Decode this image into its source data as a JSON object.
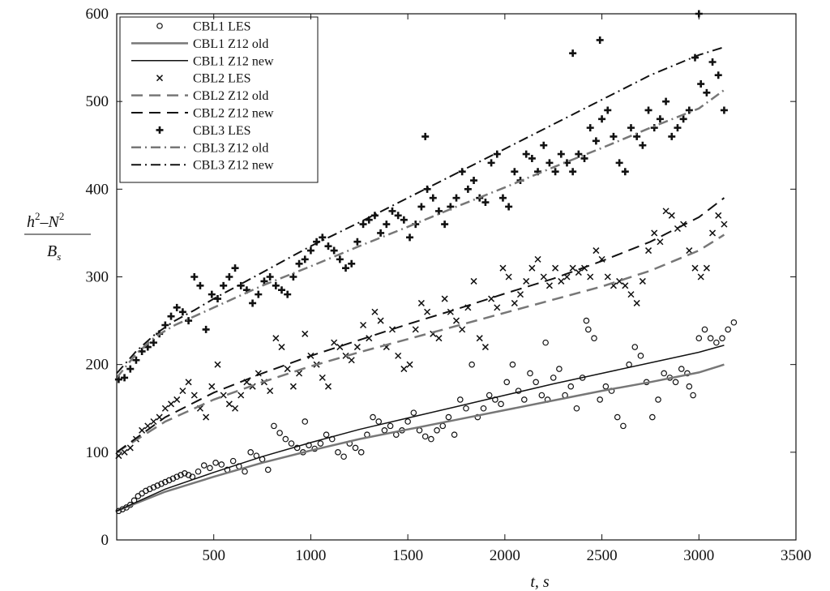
{
  "chart_data": {
    "type": "line",
    "title": "",
    "xlabel": "t, s",
    "ylabel": {
      "numerator_h": "h",
      "numerator_minus": "–",
      "numerator_n": "N",
      "exponent": "2",
      "denominator": "B",
      "denominator_sub": "s"
    },
    "xlim": [
      0,
      3500
    ],
    "ylim": [
      0,
      600
    ],
    "xticks": [
      "500",
      "1000",
      "1500",
      "2000",
      "2500",
      "3000",
      "3500"
    ],
    "xtick_values": [
      500,
      1000,
      1500,
      2000,
      2500,
      3000,
      3500
    ],
    "yticks": [
      "0",
      "100",
      "200",
      "300",
      "400",
      "500",
      "600"
    ],
    "ytick_values": [
      0,
      100,
      200,
      300,
      400,
      500,
      600
    ],
    "grid": false,
    "legend_position": "top-left",
    "colors": {
      "black": "#111111",
      "grey": "#777777"
    },
    "series": [
      {
        "name": "CBL1 LES",
        "kind": "scatter",
        "marker": "circle",
        "color": "#111111",
        "x": [
          10,
          30,
          50,
          70,
          90,
          110,
          130,
          150,
          170,
          190,
          210,
          230,
          250,
          270,
          290,
          310,
          330,
          350,
          370,
          390,
          420,
          450,
          480,
          510,
          540,
          570,
          600,
          630,
          660,
          690,
          720,
          750,
          780,
          810,
          840,
          870,
          900,
          930,
          960,
          990,
          1020,
          1050,
          1080,
          1110,
          1140,
          1170,
          1200,
          1230,
          1260,
          1290,
          1320,
          1350,
          1380,
          1410,
          1440,
          1470,
          1500,
          1530,
          1560,
          1590,
          1620,
          1650,
          1680,
          1710,
          1740,
          1770,
          1800,
          1830,
          1860,
          1890,
          1920,
          1950,
          1980,
          2010,
          2040,
          2070,
          2100,
          2130,
          2160,
          2190,
          2220,
          2250,
          2280,
          2310,
          2340,
          2370,
          2400,
          2430,
          2460,
          2490,
          2520,
          2550,
          2580,
          2610,
          2640,
          2670,
          2700,
          2730,
          2760,
          2790,
          2820,
          2850,
          2880,
          2910,
          2940,
          2970,
          3000,
          3030,
          3060,
          3090,
          3120,
          3150,
          3180,
          970,
          2210,
          2420,
          2950
        ],
        "y": [
          33,
          35,
          37,
          40,
          45,
          50,
          53,
          56,
          58,
          60,
          62,
          64,
          66,
          68,
          70,
          72,
          74,
          76,
          74,
          72,
          78,
          85,
          82,
          88,
          86,
          80,
          90,
          84,
          78,
          100,
          96,
          92,
          80,
          130,
          122,
          115,
          110,
          105,
          100,
          108,
          104,
          110,
          120,
          115,
          100,
          95,
          110,
          105,
          100,
          120,
          140,
          135,
          125,
          130,
          120,
          125,
          135,
          145,
          125,
          118,
          115,
          125,
          130,
          140,
          120,
          160,
          150,
          200,
          140,
          150,
          165,
          160,
          155,
          180,
          200,
          170,
          160,
          190,
          180,
          165,
          160,
          185,
          195,
          165,
          175,
          150,
          185,
          240,
          230,
          160,
          175,
          170,
          140,
          130,
          200,
          220,
          210,
          180,
          140,
          160,
          190,
          185,
          180,
          195,
          190,
          165,
          230,
          240,
          230,
          225,
          230,
          240,
          248,
          135,
          225,
          250,
          175
        ]
      },
      {
        "name": "CBL1 Z12 old",
        "kind": "line",
        "dash": "solid",
        "color": "#777777",
        "width": 2.5,
        "x": [
          0,
          250,
          500,
          750,
          1000,
          1250,
          1500,
          1750,
          2000,
          2250,
          2500,
          2750,
          3000,
          3130
        ],
        "y": [
          33,
          55,
          72,
          88,
          102,
          115,
          126,
          137,
          148,
          159,
          170,
          180,
          191,
          200
        ]
      },
      {
        "name": "CBL1 Z12 new",
        "kind": "line",
        "dash": "solid",
        "color": "#111111",
        "width": 1.5,
        "x": [
          0,
          250,
          500,
          750,
          1000,
          1250,
          1500,
          1750,
          2000,
          2250,
          2500,
          2750,
          3000,
          3130
        ],
        "y": [
          33,
          58,
          77,
          95,
          111,
          126,
          139,
          152,
          165,
          178,
          190,
          202,
          214,
          222
        ]
      },
      {
        "name": "CBL2 LES",
        "kind": "scatter",
        "marker": "x",
        "color": "#111111",
        "x": [
          10,
          40,
          70,
          100,
          130,
          160,
          190,
          220,
          250,
          280,
          310,
          340,
          370,
          400,
          430,
          460,
          490,
          520,
          550,
          580,
          610,
          640,
          670,
          700,
          730,
          760,
          790,
          820,
          850,
          880,
          910,
          940,
          970,
          1000,
          1030,
          1060,
          1090,
          1120,
          1150,
          1180,
          1210,
          1240,
          1270,
          1300,
          1330,
          1360,
          1390,
          1420,
          1450,
          1480,
          1510,
          1540,
          1570,
          1600,
          1630,
          1660,
          1690,
          1720,
          1750,
          1780,
          1810,
          1840,
          1870,
          1900,
          1930,
          1960,
          1990,
          2020,
          2050,
          2080,
          2110,
          2140,
          2170,
          2200,
          2230,
          2260,
          2290,
          2320,
          2350,
          2380,
          2410,
          2440,
          2470,
          2500,
          2530,
          2560,
          2590,
          2620,
          2650,
          2680,
          2710,
          2740,
          2770,
          2800,
          2830,
          2860,
          2890,
          2920,
          2950,
          2980,
          3010,
          3040,
          3070,
          3100,
          3130
        ],
        "y": [
          96,
          100,
          105,
          115,
          125,
          130,
          135,
          140,
          150,
          155,
          160,
          170,
          180,
          165,
          150,
          140,
          175,
          200,
          165,
          155,
          150,
          165,
          180,
          175,
          190,
          180,
          170,
          230,
          220,
          195,
          175,
          190,
          235,
          210,
          200,
          185,
          175,
          225,
          220,
          210,
          205,
          220,
          245,
          230,
          260,
          250,
          220,
          240,
          210,
          195,
          200,
          240,
          270,
          260,
          235,
          230,
          275,
          260,
          250,
          240,
          265,
          295,
          230,
          220,
          275,
          265,
          310,
          300,
          270,
          280,
          295,
          310,
          320,
          300,
          290,
          310,
          295,
          300,
          310,
          305,
          310,
          300,
          330,
          320,
          300,
          290,
          295,
          290,
          280,
          270,
          295,
          330,
          350,
          340,
          375,
          370,
          355,
          360,
          330,
          310,
          300,
          310,
          350,
          370,
          360
        ]
      },
      {
        "name": "CBL2 Z12 old",
        "kind": "line",
        "dash": "dashed",
        "color": "#777777",
        "width": 2.5,
        "x": [
          0,
          250,
          500,
          750,
          1000,
          1250,
          1500,
          1750,
          2000,
          2250,
          2500,
          2750,
          3000,
          3130
        ],
        "y": [
          100,
          135,
          160,
          180,
          198,
          214,
          229,
          244,
          259,
          274,
          289,
          307,
          330,
          348
        ]
      },
      {
        "name": "CBL2 Z12 new",
        "kind": "line",
        "dash": "dashed",
        "color": "#111111",
        "width": 2,
        "x": [
          0,
          250,
          500,
          750,
          1000,
          1250,
          1500,
          1750,
          2000,
          2250,
          2500,
          2750,
          3000,
          3130
        ],
        "y": [
          100,
          140,
          168,
          190,
          210,
          228,
          246,
          263,
          281,
          298,
          318,
          340,
          368,
          390
        ]
      },
      {
        "name": "CBL3 LES",
        "kind": "scatter",
        "marker": "plus",
        "color": "#111111",
        "x": [
          10,
          40,
          70,
          100,
          130,
          160,
          190,
          220,
          250,
          280,
          310,
          340,
          370,
          400,
          430,
          460,
          490,
          520,
          550,
          580,
          610,
          640,
          670,
          700,
          730,
          760,
          790,
          820,
          850,
          880,
          910,
          940,
          970,
          1000,
          1030,
          1060,
          1090,
          1120,
          1150,
          1180,
          1210,
          1240,
          1270,
          1300,
          1330,
          1360,
          1390,
          1420,
          1450,
          1480,
          1510,
          1540,
          1570,
          1600,
          1630,
          1660,
          1690,
          1720,
          1750,
          1780,
          1810,
          1840,
          1870,
          1900,
          1930,
          1960,
          1990,
          2020,
          2050,
          2080,
          2110,
          2140,
          2170,
          2200,
          2230,
          2260,
          2290,
          2320,
          2350,
          2380,
          2410,
          2440,
          2470,
          2500,
          2530,
          2560,
          2590,
          2620,
          2650,
          2680,
          2710,
          2740,
          2770,
          2800,
          2830,
          2860,
          2890,
          2920,
          2950,
          2980,
          3010,
          3040,
          3070,
          3100,
          3130,
          1590,
          2350,
          2490,
          3000
        ],
        "y": [
          183,
          185,
          195,
          205,
          215,
          220,
          225,
          235,
          245,
          255,
          265,
          260,
          250,
          300,
          290,
          240,
          280,
          275,
          290,
          300,
          310,
          290,
          285,
          270,
          280,
          295,
          300,
          290,
          285,
          280,
          300,
          315,
          320,
          330,
          340,
          345,
          335,
          330,
          320,
          310,
          315,
          340,
          360,
          365,
          370,
          350,
          360,
          375,
          370,
          365,
          345,
          360,
          380,
          400,
          390,
          375,
          360,
          380,
          390,
          420,
          400,
          410,
          390,
          385,
          430,
          440,
          390,
          380,
          420,
          410,
          440,
          435,
          420,
          450,
          430,
          420,
          440,
          430,
          420,
          440,
          435,
          470,
          455,
          480,
          490,
          460,
          430,
          420,
          470,
          460,
          450,
          490,
          470,
          480,
          500,
          460,
          470,
          480,
          490,
          550,
          520,
          510,
          545,
          530,
          490,
          460,
          555,
          570,
          600
        ]
      },
      {
        "name": "CBL3 Z12 old",
        "kind": "line",
        "dash": "dashdot",
        "color": "#777777",
        "width": 2.5,
        "x": [
          0,
          100,
          200,
          300,
          400,
          500,
          750,
          1000,
          1250,
          1500,
          1750,
          2000,
          2250,
          2500,
          2750,
          3000,
          3130
        ],
        "y": [
          185,
          212,
          232,
          245,
          255,
          265,
          290,
          312,
          335,
          357,
          380,
          402,
          425,
          447,
          470,
          492,
          513
        ]
      },
      {
        "name": "CBL3 Z12 new",
        "kind": "line",
        "dash": "dashdot",
        "color": "#111111",
        "width": 2,
        "x": [
          0,
          100,
          200,
          300,
          400,
          500,
          750,
          1000,
          1250,
          1500,
          1750,
          2000,
          2250,
          2500,
          2750,
          3000,
          3130
        ],
        "y": [
          190,
          215,
          235,
          250,
          262,
          275,
          305,
          335,
          362,
          390,
          418,
          446,
          474,
          502,
          530,
          553,
          562
        ]
      }
    ]
  }
}
